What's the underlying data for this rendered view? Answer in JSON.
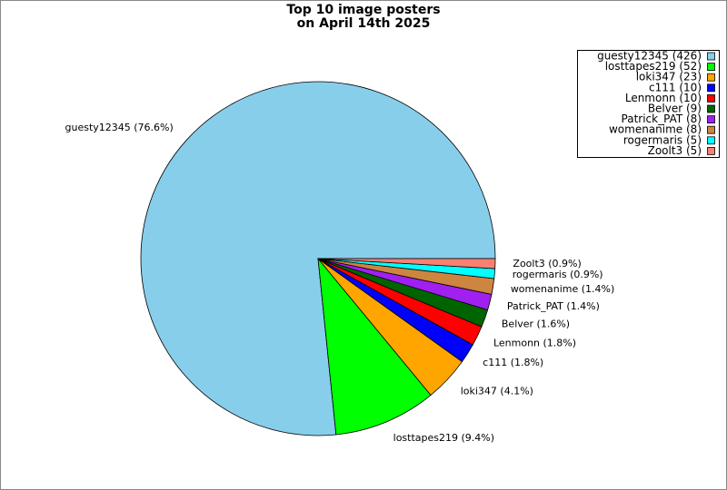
{
  "chart_data": {
    "type": "pie",
    "title": [
      "Top 10 image posters",
      "on April 14th 2025"
    ],
    "values": [
      426,
      52,
      23,
      10,
      10,
      9,
      8,
      8,
      5,
      5
    ],
    "slice_labels": [
      "guesty12345 (76.6%)",
      "losttapes219 (9.4%)",
      "loki347 (4.1%)",
      "c111 (1.8%)",
      "Lenmonn (1.8%)",
      "Belver (1.6%)",
      "Patrick_PAT (1.4%)",
      "womenanime (1.4%)",
      "rogermaris (0.9%)",
      "Zoolt3 (0.9%)"
    ],
    "legend_labels": [
      "guesty12345 (426)",
      "losttapes219 (52)",
      "loki347 (23)",
      "c111 (10)",
      "Lenmonn (10)",
      "Belver (9)",
      "Patrick_PAT (8)",
      "womenanime (8)",
      "rogermaris (5)",
      "Zoolt3 (5)"
    ],
    "colors": [
      "#87ceeb",
      "#00ff00",
      "#ffa500",
      "#0000ff",
      "#ff0000",
      "#006400",
      "#a020f0",
      "#cd853f",
      "#00ffff",
      "#fa8072"
    ],
    "legend": "top-right"
  }
}
